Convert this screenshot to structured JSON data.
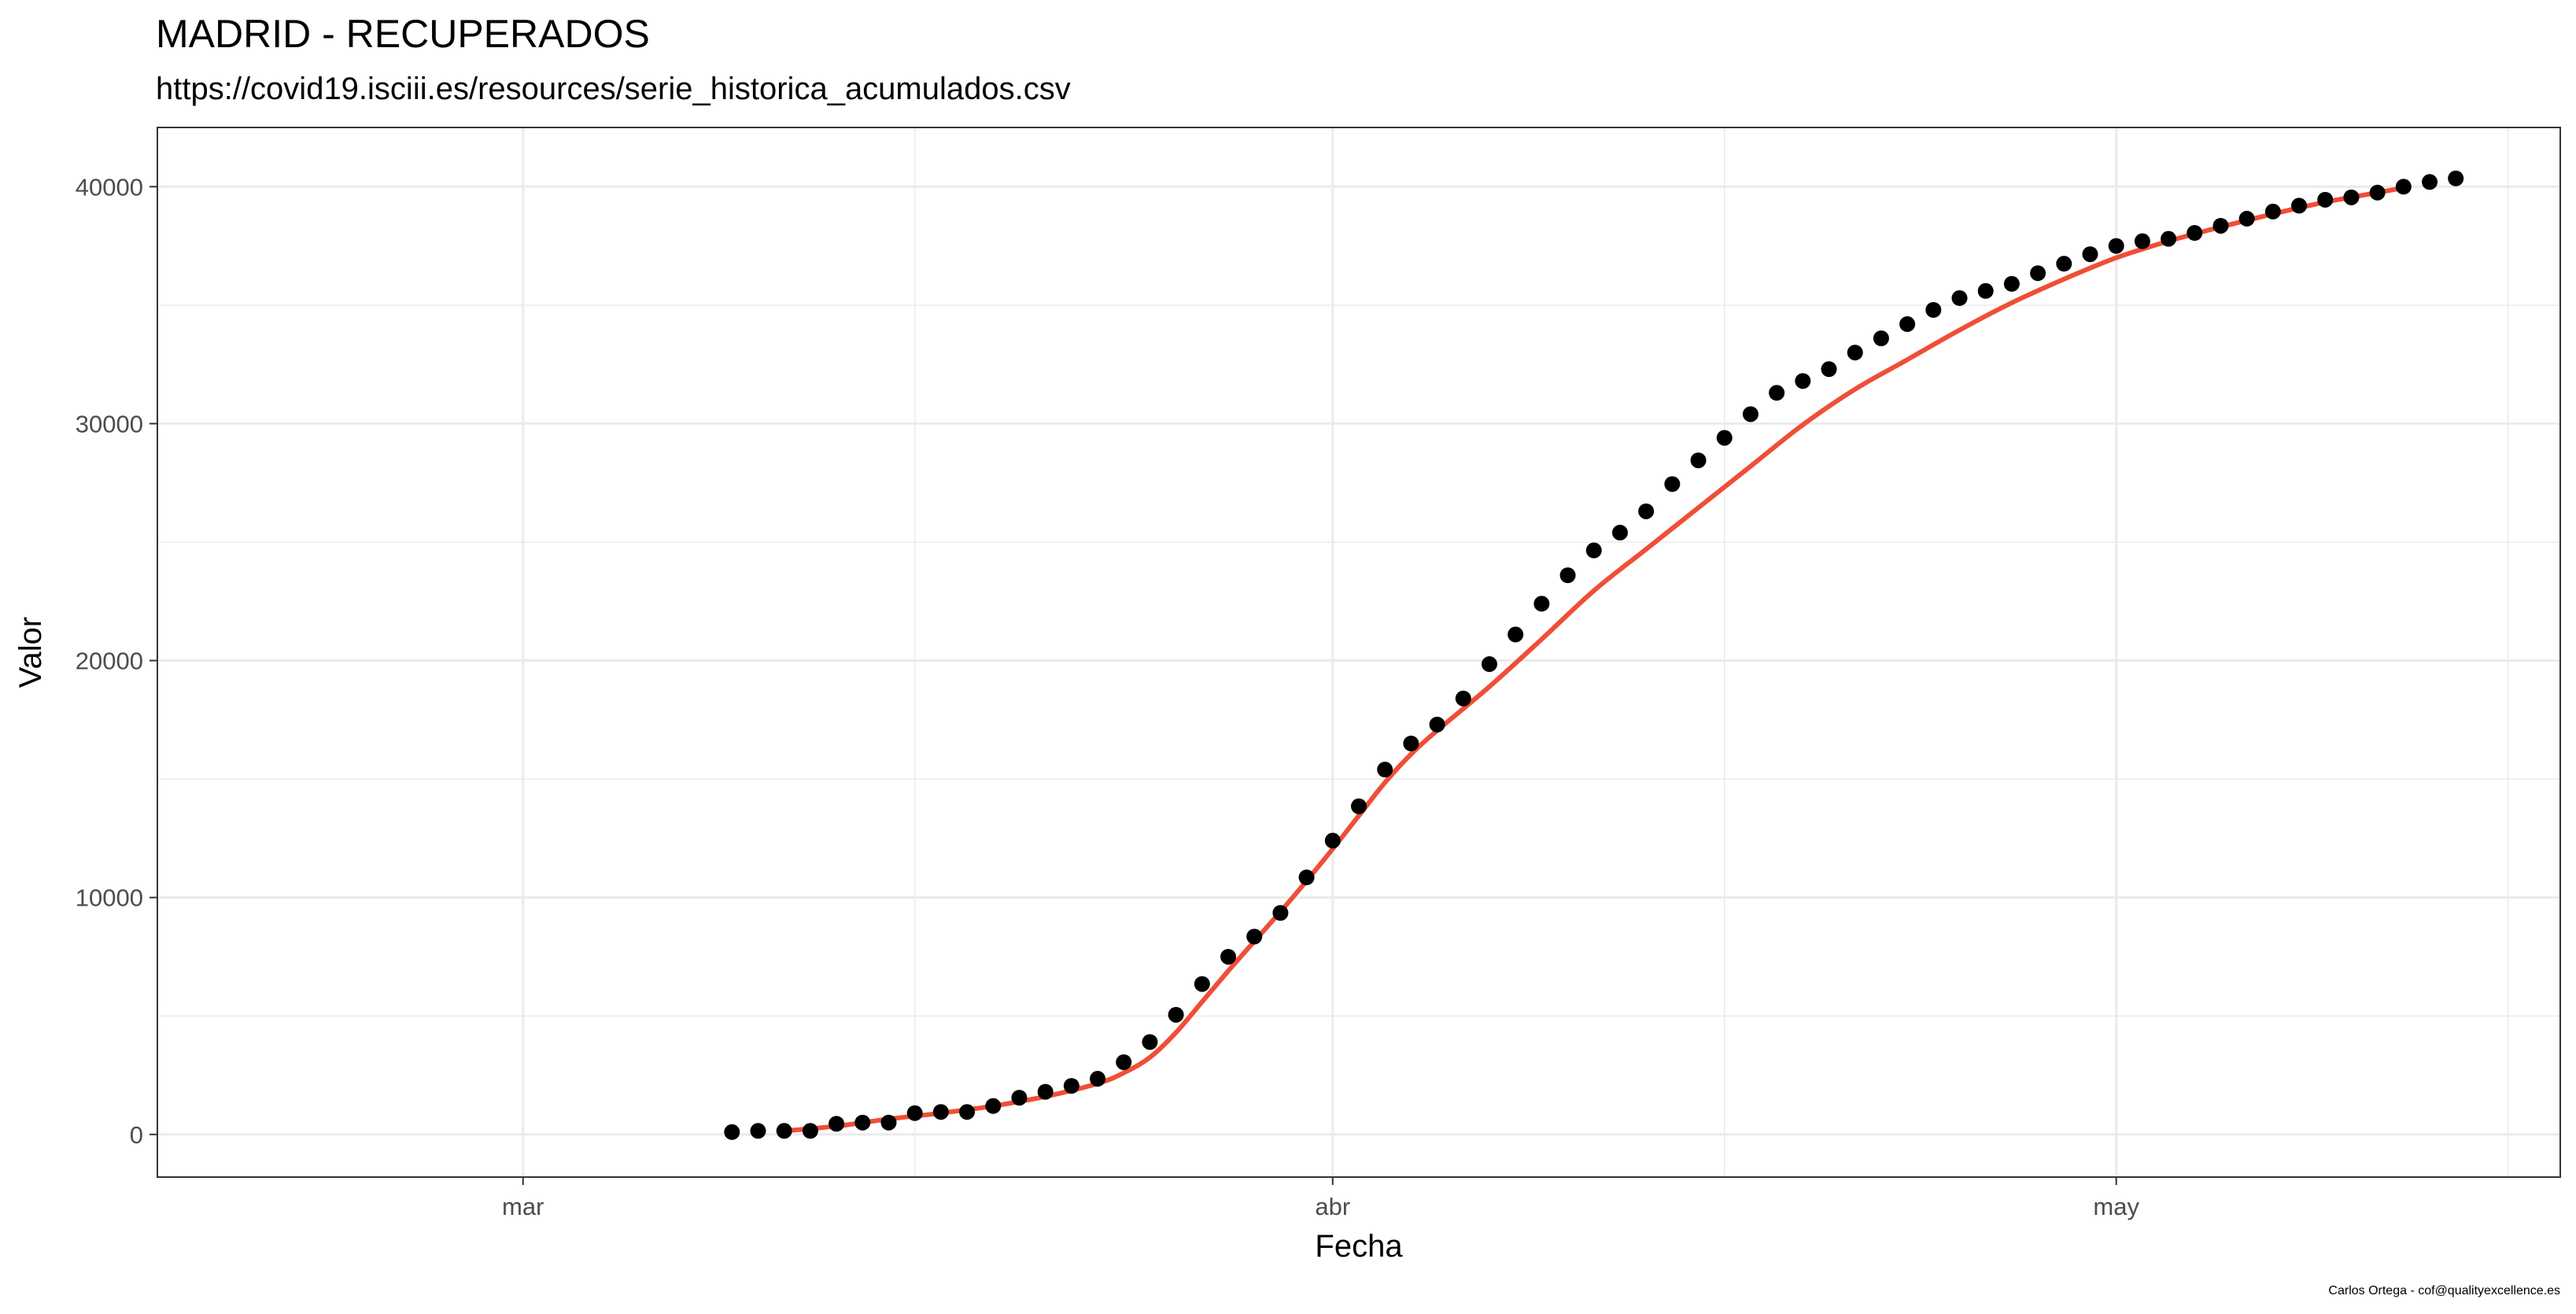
{
  "chart_data": {
    "type": "scatter",
    "title": "MADRID - RECUPERADOS",
    "subtitle": "https://covid19.isciii.es/resources/serie_historica_acumulados.csv",
    "xlabel": "Fecha",
    "ylabel": "Valor",
    "caption": "Carlos Ortega - cof@qualityexcellence.es",
    "x_range": [
      "2020-02-16",
      "2020-05-18"
    ],
    "ylim": [
      -1800,
      42500
    ],
    "grid": true,
    "x_ticks": [
      {
        "date": "2020-03-01",
        "label": "mar"
      },
      {
        "date": "2020-04-01",
        "label": "abr"
      },
      {
        "date": "2020-05-01",
        "label": "may"
      }
    ],
    "x_minor_ticks": [
      "2020-03-16",
      "2020-04-16",
      "2020-05-16"
    ],
    "y_ticks": [
      0,
      10000,
      20000,
      30000,
      40000
    ],
    "y_minor_ticks": [
      5000,
      15000,
      25000,
      35000
    ],
    "colors": {
      "points": "#000000",
      "smooth": "#f04e37",
      "grid": "#ebebeb",
      "panel_border": "#333333"
    },
    "series": [
      {
        "kind": "points",
        "x": [
          "2020-03-09",
          "2020-03-10",
          "2020-03-11",
          "2020-03-12",
          "2020-03-13",
          "2020-03-14",
          "2020-03-15",
          "2020-03-16",
          "2020-03-17",
          "2020-03-18",
          "2020-03-19",
          "2020-03-20",
          "2020-03-21",
          "2020-03-22",
          "2020-03-23",
          "2020-03-24",
          "2020-03-25",
          "2020-03-26",
          "2020-03-27",
          "2020-03-28",
          "2020-03-29",
          "2020-03-30",
          "2020-03-31",
          "2020-04-01",
          "2020-04-02",
          "2020-04-03",
          "2020-04-04",
          "2020-04-05",
          "2020-04-06",
          "2020-04-07",
          "2020-04-08",
          "2020-04-09",
          "2020-04-10",
          "2020-04-11",
          "2020-04-12",
          "2020-04-13",
          "2020-04-14",
          "2020-04-15",
          "2020-04-16",
          "2020-04-17",
          "2020-04-18",
          "2020-04-19",
          "2020-04-20",
          "2020-04-21",
          "2020-04-22",
          "2020-04-23",
          "2020-04-24",
          "2020-04-25",
          "2020-04-26",
          "2020-04-27",
          "2020-04-28",
          "2020-04-29",
          "2020-04-30",
          "2020-05-01",
          "2020-05-02",
          "2020-05-03",
          "2020-05-04",
          "2020-05-05",
          "2020-05-06",
          "2020-05-07",
          "2020-05-08",
          "2020-05-09",
          "2020-05-10",
          "2020-05-11",
          "2020-05-12",
          "2020-05-13",
          "2020-05-14"
        ],
        "values": [
          100,
          150,
          150,
          150,
          450,
          500,
          500,
          900,
          950,
          950,
          1200,
          1550,
          1800,
          2050,
          2350,
          3050,
          3900,
          5050,
          6350,
          7500,
          8350,
          9350,
          10850,
          12400,
          13850,
          15400,
          16500,
          17300,
          18400,
          19850,
          21100,
          22400,
          23600,
          24650,
          25400,
          26300,
          27450,
          28450,
          29400,
          30400,
          31300,
          31800,
          32300,
          33000,
          33600,
          34200,
          34800,
          35300,
          35600,
          35900,
          36350,
          36750,
          37150,
          37500,
          37700,
          37800,
          38050,
          38350,
          38650,
          38950,
          39200,
          39450,
          39550,
          39750,
          40000,
          40200,
          40350
        ]
      },
      {
        "kind": "smooth",
        "x": [
          "2020-03-11",
          "2020-03-13",
          "2020-03-15",
          "2020-03-17",
          "2020-03-19",
          "2020-03-21",
          "2020-03-23",
          "2020-03-24",
          "2020-03-25",
          "2020-03-26",
          "2020-03-27",
          "2020-03-28",
          "2020-03-29",
          "2020-03-30",
          "2020-03-31",
          "2020-04-01",
          "2020-04-02",
          "2020-04-03",
          "2020-04-04",
          "2020-04-05",
          "2020-04-07",
          "2020-04-09",
          "2020-04-11",
          "2020-04-13",
          "2020-04-15",
          "2020-04-17",
          "2020-04-19",
          "2020-04-21",
          "2020-04-23",
          "2020-04-25",
          "2020-04-27",
          "2020-04-29",
          "2020-05-01",
          "2020-05-03",
          "2020-05-05",
          "2020-05-07",
          "2020-05-09",
          "2020-05-11",
          "2020-05-12"
        ],
        "values": [
          150,
          350,
          650,
          900,
          1200,
          1600,
          2150,
          2600,
          3250,
          4300,
          5600,
          6900,
          8150,
          9400,
          10700,
          12050,
          13450,
          14850,
          16050,
          17050,
          18900,
          20900,
          22950,
          24700,
          26450,
          28200,
          29950,
          31450,
          32700,
          33950,
          35100,
          36100,
          37000,
          37700,
          38300,
          38850,
          39350,
          39750,
          39950
        ]
      }
    ]
  }
}
